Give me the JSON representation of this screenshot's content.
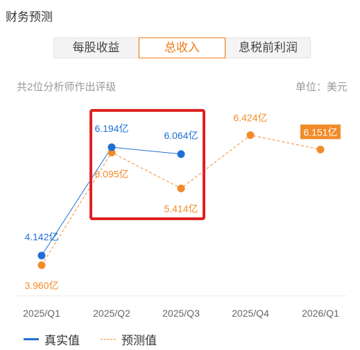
{
  "header": {
    "title": "财务预测"
  },
  "tabs": [
    {
      "label": "每股收益",
      "active": false
    },
    {
      "label": "总收入",
      "active": true
    },
    {
      "label": "息税前利润",
      "active": false
    }
  ],
  "info": {
    "analysts": "共2位分析师作出评级",
    "unit": "单位：美元"
  },
  "colors": {
    "actual": "#1f6fd6",
    "forecast": "#f28b2a",
    "highlight": "#e02020",
    "active_tab": "#ee7b16"
  },
  "legend": {
    "actual": "真实值",
    "forecast": "预测值"
  },
  "chart_data": {
    "type": "line",
    "categories": [
      "2025/Q1",
      "2025/Q2",
      "2025/Q3",
      "2025/Q4",
      "2026/Q1"
    ],
    "series": [
      {
        "name": "真实值",
        "values": [
          4.142,
          6.194,
          6.064,
          null,
          null
        ],
        "labels": [
          "4.142亿",
          "6.194亿",
          "6.064亿",
          null,
          null
        ]
      },
      {
        "name": "预测值",
        "values": [
          3.96,
          6.095,
          5.414,
          6.424,
          6.151
        ],
        "labels": [
          "3.960亿",
          "6.095亿",
          "5.414亿",
          "6.424亿",
          "6.151亿"
        ]
      }
    ],
    "highlighted_label": "6.151亿",
    "highlighted_categories": [
      "2025/Q2",
      "2025/Q3"
    ],
    "grid": false
  }
}
